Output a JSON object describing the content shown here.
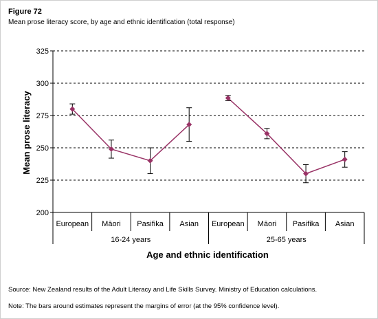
{
  "figure": {
    "label": "Figure 72",
    "title": "Mean prose literacy score, by age and ethnic identification (total response)"
  },
  "chart_data": {
    "type": "line",
    "title": "",
    "ylabel": "Mean prose literacy",
    "xlabel": "Age and ethnic identification",
    "ylim": [
      200,
      325
    ],
    "yticks": [
      200,
      225,
      250,
      275,
      300,
      325
    ],
    "grid": true,
    "marker_color": "#993366",
    "groups": [
      {
        "label": "16-24 years",
        "categories": [
          "European",
          "Māori",
          "Pasifika",
          "Asian"
        ],
        "values": [
          280,
          249,
          240,
          268
        ],
        "errors": [
          4,
          7,
          10,
          13
        ]
      },
      {
        "label": "25-65 years",
        "categories": [
          "European",
          "Māori",
          "Pasifika",
          "Asian"
        ],
        "values": [
          288.5,
          261,
          230,
          241
        ],
        "errors": [
          2,
          4,
          7,
          6
        ]
      }
    ]
  },
  "notes": {
    "source": "Source:  New Zealand results of the Adult Literacy and Life Skills Survey.  Ministry of Education calculations.",
    "note": "Note:  The bars around estimates represent the margins of error (at the 95% confidence level)."
  }
}
